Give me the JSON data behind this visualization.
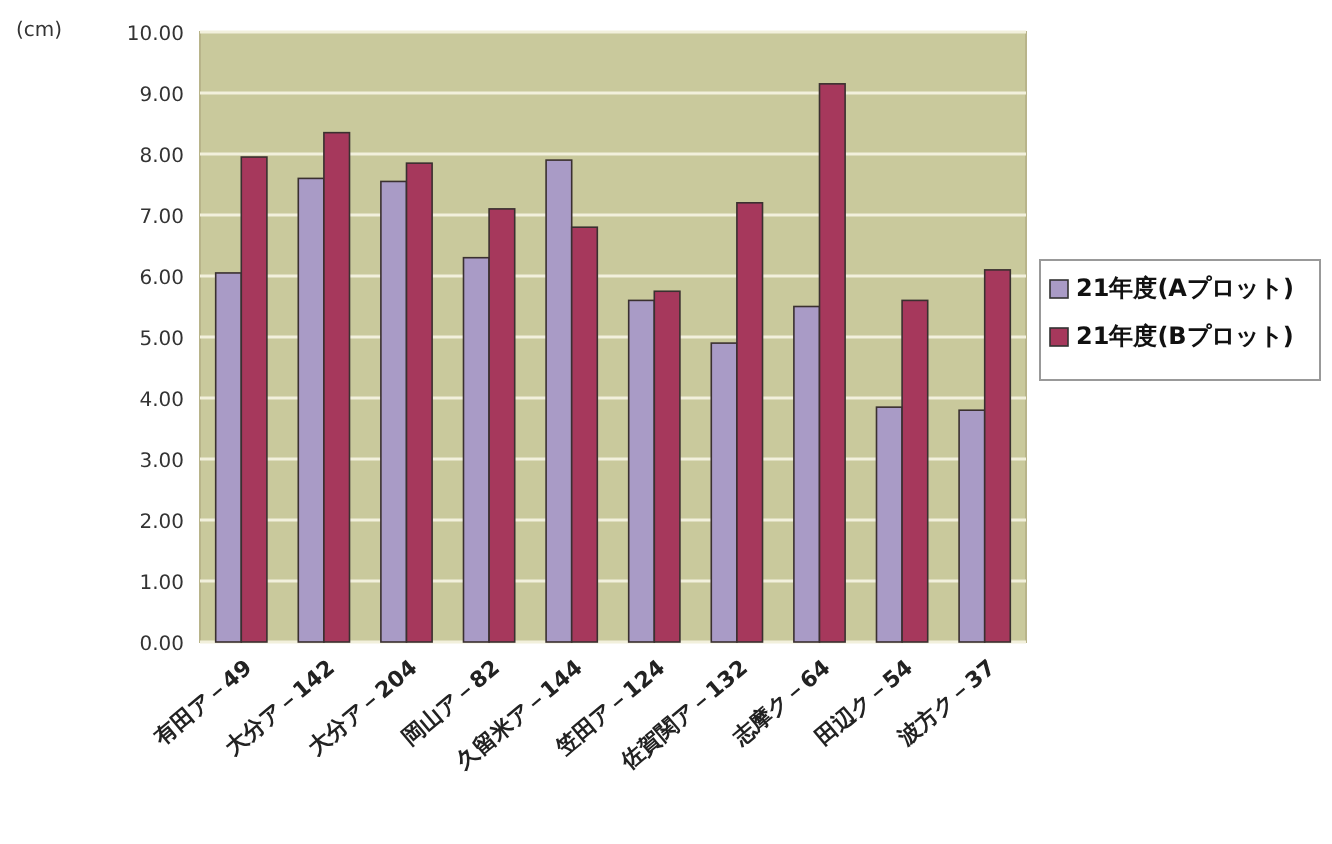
{
  "chart_data": {
    "type": "bar",
    "ylabel": "(cm)",
    "categories": [
      "有田ア－49",
      "大分ア－142",
      "大分ア－204",
      "岡山ア－82",
      "久留米ア－144",
      "笠田ア－124",
      "佐賀関ア－132",
      "志摩ク－64",
      "田辺ク－54",
      "波方ク－37"
    ],
    "series": [
      {
        "name": "21年度(Aプロット)",
        "color": "#a99bc6",
        "values": [
          6.05,
          7.6,
          7.55,
          6.3,
          7.9,
          5.6,
          4.9,
          5.5,
          3.85,
          3.8
        ]
      },
      {
        "name": "21年度(Bプロット)",
        "color": "#a6385c",
        "values": [
          7.95,
          8.35,
          7.85,
          7.1,
          6.8,
          5.75,
          7.2,
          9.15,
          5.6,
          6.1
        ]
      }
    ],
    "ylim": [
      0,
      10
    ],
    "yticks": [
      {
        "value": 0,
        "label": "0.00"
      },
      {
        "value": 1,
        "label": "1.00"
      },
      {
        "value": 2,
        "label": "2.00"
      },
      {
        "value": 3,
        "label": "3.00"
      },
      {
        "value": 4,
        "label": "4.00"
      },
      {
        "value": 5,
        "label": "5.00"
      },
      {
        "value": 6,
        "label": "6.00"
      },
      {
        "value": 7,
        "label": "7.00"
      },
      {
        "value": 8,
        "label": "8.00"
      },
      {
        "value": 9,
        "label": "9.00"
      },
      {
        "value": 10,
        "label": "10.00"
      }
    ],
    "grid": "y",
    "legend": "right"
  }
}
